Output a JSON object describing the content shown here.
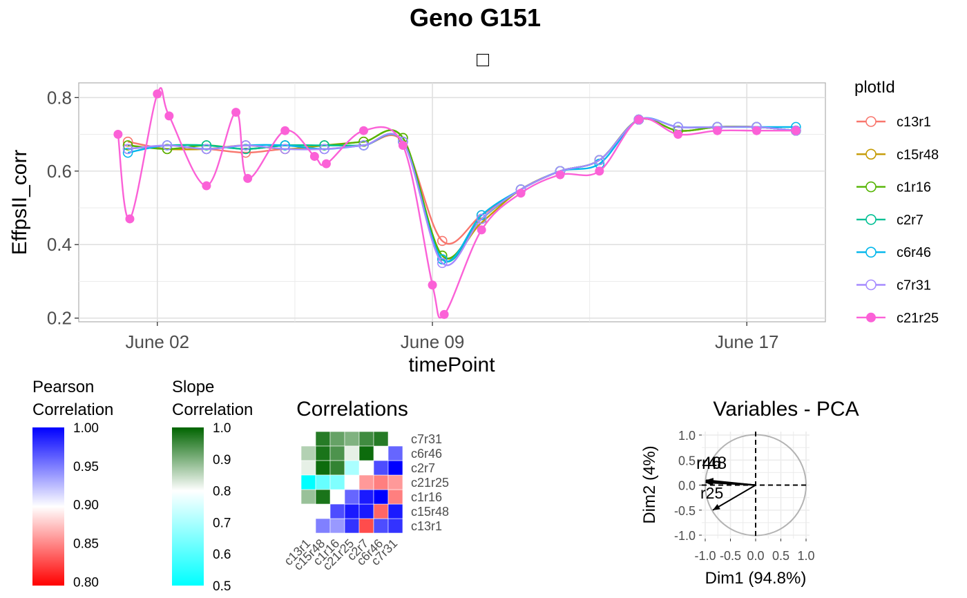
{
  "chart_data": [
    {
      "type": "line",
      "title": "Geno G151",
      "subtitle": "□",
      "xlabel": "timePoint",
      "ylabel": "EffpsII_corr",
      "x_tick_labels": [
        "June 02",
        "June 09",
        "June 17"
      ],
      "y_ticks": [
        0.2,
        0.4,
        0.6,
        0.8
      ],
      "y_tick_labels": [
        "0.2",
        "0.4",
        "0.6",
        "0.8"
      ],
      "ylim": [
        0.19,
        0.84
      ],
      "xlim": [
        "2021-05-31",
        "2021-06-19"
      ],
      "legend_title": "plotId",
      "legend_position": "right",
      "grid": true,
      "series": [
        {
          "name": "c13r1",
          "color": "#F8766D",
          "marker": "open-circle",
          "x": [
            "2021-06-01",
            "2021-06-02",
            "2021-06-03",
            "2021-06-04",
            "2021-06-05",
            "2021-06-06",
            "2021-06-07",
            "2021-06-08",
            "2021-06-09",
            "2021-06-10",
            "2021-06-11",
            "2021-06-12",
            "2021-06-13",
            "2021-06-14",
            "2021-06-15",
            "2021-06-16",
            "2021-06-17",
            "2021-06-18"
          ],
          "y": [
            0.68,
            0.66,
            0.66,
            0.65,
            0.66,
            0.66,
            0.67,
            0.68,
            0.41,
            0.48,
            0.55,
            0.6,
            0.63,
            0.74,
            0.71,
            0.72,
            0.72,
            0.71
          ]
        },
        {
          "name": "c15r48",
          "color": "#C49A00",
          "marker": "open-circle",
          "x": [
            "2021-06-01",
            "2021-06-02",
            "2021-06-03",
            "2021-06-04",
            "2021-06-05",
            "2021-06-06",
            "2021-06-07",
            "2021-06-08",
            "2021-06-09",
            "2021-06-10",
            "2021-06-11",
            "2021-06-12",
            "2021-06-13",
            "2021-06-14",
            "2021-06-15",
            "2021-06-16",
            "2021-06-17",
            "2021-06-18"
          ],
          "y": [
            0.67,
            0.66,
            0.66,
            0.67,
            0.66,
            0.67,
            0.68,
            0.69,
            0.37,
            0.46,
            0.55,
            0.6,
            0.63,
            0.74,
            0.71,
            0.72,
            0.72,
            0.71
          ]
        },
        {
          "name": "c1r16",
          "color": "#53B400",
          "marker": "open-circle",
          "x": [
            "2021-06-01",
            "2021-06-02",
            "2021-06-03",
            "2021-06-04",
            "2021-06-05",
            "2021-06-06",
            "2021-06-07",
            "2021-06-08",
            "2021-06-09",
            "2021-06-10",
            "2021-06-11",
            "2021-06-12",
            "2021-06-13",
            "2021-06-14",
            "2021-06-15",
            "2021-06-16",
            "2021-06-17",
            "2021-06-18"
          ],
          "y": [
            0.67,
            0.66,
            0.67,
            0.66,
            0.67,
            0.67,
            0.68,
            0.69,
            0.37,
            0.47,
            0.55,
            0.6,
            0.63,
            0.74,
            0.71,
            0.72,
            0.72,
            0.71
          ]
        },
        {
          "name": "c2r7",
          "color": "#00C094",
          "marker": "open-circle",
          "x": [
            "2021-06-01",
            "2021-06-02",
            "2021-06-03",
            "2021-06-04",
            "2021-06-05",
            "2021-06-06",
            "2021-06-07",
            "2021-06-08",
            "2021-06-09",
            "2021-06-10",
            "2021-06-11",
            "2021-06-12",
            "2021-06-13",
            "2021-06-14",
            "2021-06-15",
            "2021-06-16",
            "2021-06-17",
            "2021-06-18"
          ],
          "y": [
            0.66,
            0.67,
            0.67,
            0.66,
            0.67,
            0.67,
            0.67,
            0.68,
            0.36,
            0.47,
            0.55,
            0.6,
            0.63,
            0.74,
            0.72,
            0.72,
            0.72,
            0.71
          ]
        },
        {
          "name": "c6r46",
          "color": "#00B6EB",
          "marker": "open-circle",
          "x": [
            "2021-06-01",
            "2021-06-02",
            "2021-06-03",
            "2021-06-04",
            "2021-06-05",
            "2021-06-06",
            "2021-06-07",
            "2021-06-08",
            "2021-06-09",
            "2021-06-10",
            "2021-06-11",
            "2021-06-12",
            "2021-06-13",
            "2021-06-14",
            "2021-06-15",
            "2021-06-16",
            "2021-06-17",
            "2021-06-18"
          ],
          "y": [
            0.65,
            0.67,
            0.66,
            0.67,
            0.67,
            0.66,
            0.67,
            0.68,
            0.36,
            0.48,
            0.55,
            0.6,
            0.62,
            0.74,
            0.72,
            0.72,
            0.72,
            0.72
          ]
        },
        {
          "name": "c7r31",
          "color": "#A58AFF",
          "marker": "open-circle",
          "x": [
            "2021-06-01",
            "2021-06-02",
            "2021-06-03",
            "2021-06-04",
            "2021-06-05",
            "2021-06-06",
            "2021-06-07",
            "2021-06-08",
            "2021-06-09",
            "2021-06-10",
            "2021-06-11",
            "2021-06-12",
            "2021-06-13",
            "2021-06-14",
            "2021-06-15",
            "2021-06-16",
            "2021-06-17",
            "2021-06-18"
          ],
          "y": [
            0.66,
            0.67,
            0.66,
            0.67,
            0.66,
            0.66,
            0.67,
            0.68,
            0.35,
            0.47,
            0.55,
            0.6,
            0.63,
            0.74,
            0.72,
            0.72,
            0.72,
            0.71
          ]
        },
        {
          "name": "c21r25",
          "color": "#FB61D7",
          "marker": "filled-circle",
          "x": [
            "2021-06-01",
            "2021-06-01",
            "2021-06-02",
            "2021-06-02",
            "2021-06-03",
            "2021-06-04",
            "2021-06-04",
            "2021-06-05",
            "2021-06-06",
            "2021-06-06",
            "2021-06-07",
            "2021-06-08",
            "2021-06-09",
            "2021-06-09",
            "2021-06-10",
            "2021-06-11",
            "2021-06-12",
            "2021-06-13",
            "2021-06-14",
            "2021-06-15",
            "2021-06-16",
            "2021-06-17",
            "2021-06-18"
          ],
          "y": [
            0.7,
            0.47,
            0.81,
            0.75,
            0.56,
            0.76,
            0.58,
            0.71,
            0.64,
            0.62,
            0.71,
            0.67,
            0.29,
            0.21,
            0.44,
            0.54,
            0.59,
            0.6,
            0.74,
            0.7,
            0.71,
            0.71,
            0.71
          ]
        }
      ]
    },
    {
      "type": "heatmap",
      "title": "Correlations",
      "row_labels": [
        "c7r31",
        "c6r46",
        "c2r7",
        "c21r25",
        "c1r16",
        "c15r48",
        "c13r1"
      ],
      "col_labels": [
        "c13r1",
        "c15r48",
        "c1r16",
        "c21r25",
        "c2r7",
        "c6r46",
        "c7r31"
      ],
      "upper_metric": "Slope Correlation",
      "lower_metric": "Pearson Correlation",
      "slope_values": [
        [
          0.8,
          0.97,
          0.92,
          0.9,
          0.95,
          0.97,
          null
        ],
        [
          0.86,
          0.98,
          0.94,
          0.82,
          0.99,
          null,
          null
        ],
        [
          0.82,
          0.99,
          0.96,
          0.7,
          null,
          null,
          null
        ],
        [
          0.5,
          0.62,
          0.65,
          null,
          null,
          null,
          null
        ],
        [
          0.88,
          0.98,
          null,
          null,
          null,
          null,
          null
        ],
        [
          0.8,
          null,
          null,
          null,
          null,
          null,
          null
        ]
      ],
      "pearson_values": [
        [
          0.95,
          0.94,
          0.98,
          0.83,
          0.97,
          0.98
        ],
        [
          0.97,
          0.99,
          0.99,
          0.84,
          0.99
        ],
        [
          0.96,
          0.99,
          1.0,
          0.85
        ],
        [
          0.86,
          0.85,
          0.86
        ],
        [
          0.97,
          1.0
        ],
        [
          0.96
        ]
      ]
    },
    {
      "type": "scatter",
      "title": "Variables - PCA",
      "xlabel": "Dim1 (94.8%)",
      "ylabel": "Dim2 (4%)",
      "xlim": [
        -1.0,
        1.0
      ],
      "ylim": [
        -1.0,
        1.0
      ],
      "x_ticks": [
        "-1.0",
        "-0.5",
        "0.0",
        "0.5",
        "1.0"
      ],
      "y_ticks": [
        "1.0",
        "0.5",
        "0.0",
        "-0.5",
        "-1.0"
      ],
      "label_cluster": "r46",
      "label_cluster_2": "r48",
      "label_cluster_3": "r25",
      "vectors": [
        {
          "x": -0.99,
          "y": 0.08
        },
        {
          "x": -0.99,
          "y": 0.06
        },
        {
          "x": -0.98,
          "y": 0.1
        },
        {
          "x": -0.99,
          "y": 0.05
        },
        {
          "x": -0.99,
          "y": 0.09
        },
        {
          "x": -0.98,
          "y": 0.07
        },
        {
          "x": -0.85,
          "y": -0.5
        }
      ]
    }
  ],
  "legends": {
    "pearson": {
      "title_line1": "Pearson",
      "title_line2": "Correlation",
      "ticks": [
        "1.00",
        "0.95",
        "0.90",
        "0.85",
        "0.80"
      ],
      "range": [
        0.795,
        1.0
      ],
      "tick_values": [
        1.0,
        0.95,
        0.9,
        0.85,
        0.8
      ],
      "colors": {
        "high": "#0000FF",
        "mid": "#FFFFFF",
        "low": "#FF0000"
      }
    },
    "slope": {
      "title_line1": "Slope",
      "title_line2": "Correlation",
      "ticks": [
        "1.0",
        "0.9",
        "0.8",
        "0.7",
        "0.6",
        "0.5"
      ],
      "range": [
        0.5,
        1.0
      ],
      "tick_values": [
        1.0,
        0.9,
        0.8,
        0.7,
        0.6,
        0.5
      ],
      "colors": {
        "high": "#006400",
        "mid": "#FFFFFF",
        "low": "#00FFFF"
      }
    }
  }
}
